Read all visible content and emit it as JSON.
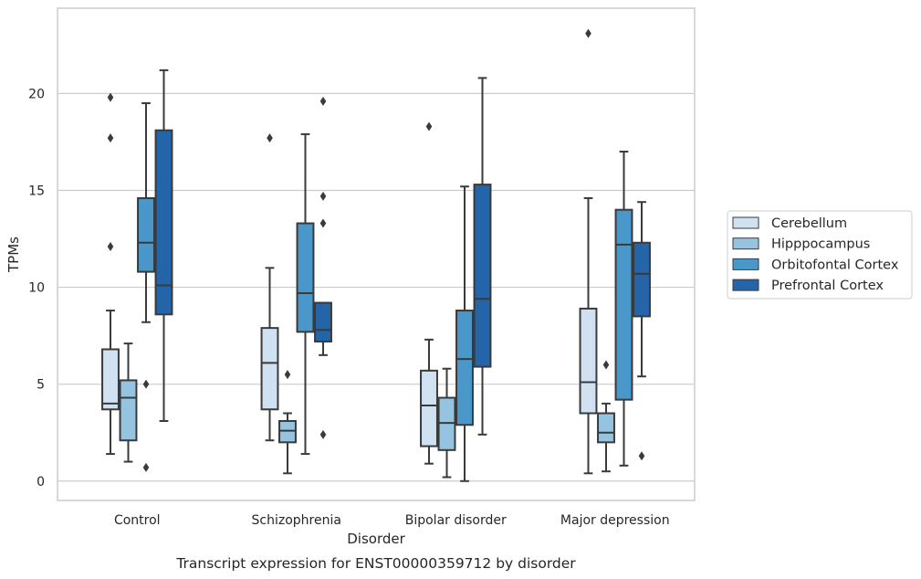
{
  "caption": "Transcript expression for ENST00000359712 by disorder",
  "chart_data": {
    "type": "box",
    "xlabel": "Disorder",
    "ylabel": "TPMs",
    "categories": [
      "Control",
      "Schizophrenia",
      "Bipolar disorder",
      "Major depression"
    ],
    "ylim": [
      -1,
      24.4
    ],
    "yticks": [
      0,
      5,
      10,
      15,
      20
    ],
    "grid": "horizontal",
    "legend_position": "right",
    "series": [
      {
        "name": "Cerebellum",
        "color": "#d0e1f2",
        "boxes": [
          {
            "whislo": 1.4,
            "q1": 3.7,
            "med": 4.0,
            "q3": 6.8,
            "whishi": 8.8,
            "fliers": [
              12.1,
              17.7,
              19.8
            ]
          },
          {
            "whislo": 2.1,
            "q1": 3.7,
            "med": 6.1,
            "q3": 7.9,
            "whishi": 11.0,
            "fliers": [
              17.7
            ]
          },
          {
            "whislo": 0.9,
            "q1": 1.8,
            "med": 3.9,
            "q3": 5.7,
            "whishi": 7.3,
            "fliers": [
              18.3
            ]
          },
          {
            "whislo": 0.4,
            "q1": 3.5,
            "med": 5.1,
            "q3": 8.9,
            "whishi": 14.6,
            "fliers": [
              23.1
            ]
          }
        ]
      },
      {
        "name": "Hipppocampus",
        "color": "#94c4df",
        "boxes": [
          {
            "whislo": 1.0,
            "q1": 2.1,
            "med": 4.3,
            "q3": 5.2,
            "whishi": 7.1,
            "fliers": []
          },
          {
            "whislo": 0.4,
            "q1": 2.0,
            "med": 2.6,
            "q3": 3.1,
            "whishi": 3.5,
            "fliers": [
              5.5
            ]
          },
          {
            "whislo": 0.2,
            "q1": 1.6,
            "med": 3.0,
            "q3": 4.3,
            "whishi": 5.8,
            "fliers": []
          },
          {
            "whislo": 0.5,
            "q1": 2.0,
            "med": 2.5,
            "q3": 3.5,
            "whishi": 4.0,
            "fliers": [
              6.0
            ]
          }
        ]
      },
      {
        "name": "Orbitofontal Cortex",
        "color": "#4a98c9",
        "boxes": [
          {
            "whislo": 8.2,
            "q1": 10.8,
            "med": 12.3,
            "q3": 14.6,
            "whishi": 19.5,
            "fliers": [
              0.7,
              5.0
            ]
          },
          {
            "whislo": 1.4,
            "q1": 7.7,
            "med": 9.7,
            "q3": 13.3,
            "whishi": 17.9,
            "fliers": []
          },
          {
            "whislo": 0.0,
            "q1": 2.9,
            "med": 6.3,
            "q3": 8.8,
            "whishi": 15.2,
            "fliers": []
          },
          {
            "whislo": 0.8,
            "q1": 4.2,
            "med": 12.2,
            "q3": 14.0,
            "whishi": 17.0,
            "fliers": []
          }
        ]
      },
      {
        "name": "Prefrontal Cortex",
        "color": "#2464a8",
        "boxes": [
          {
            "whislo": 3.1,
            "q1": 8.6,
            "med": 10.1,
            "q3": 18.1,
            "whishi": 21.2,
            "fliers": []
          },
          {
            "whislo": 6.5,
            "q1": 7.2,
            "med": 7.8,
            "q3": 9.2,
            "whishi": 9.2,
            "fliers": [
              2.4,
              13.3,
              14.7,
              19.6
            ]
          },
          {
            "whislo": 2.4,
            "q1": 5.9,
            "med": 9.4,
            "q3": 15.3,
            "whishi": 20.8,
            "fliers": []
          },
          {
            "whislo": 5.4,
            "q1": 8.5,
            "med": 10.7,
            "q3": 12.3,
            "whishi": 14.4,
            "fliers": [
              1.3
            ]
          }
        ]
      }
    ]
  }
}
